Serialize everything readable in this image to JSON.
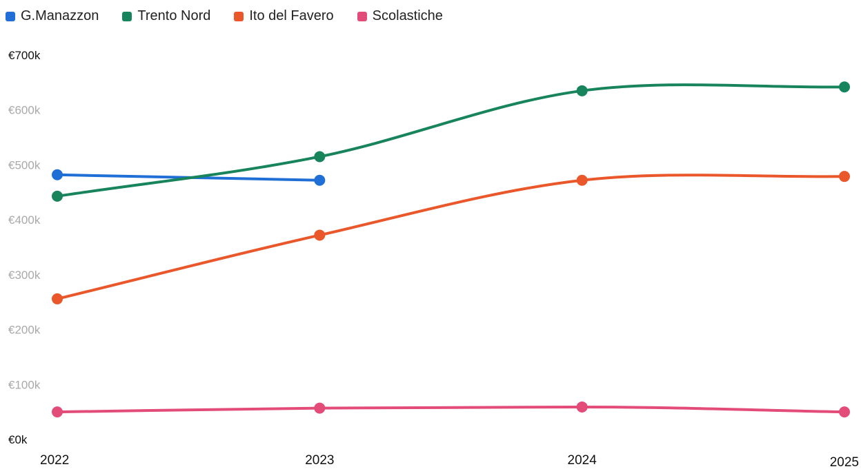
{
  "chart_data": {
    "type": "line",
    "categories": [
      "2022",
      "2023",
      "2024",
      "2025"
    ],
    "ylim": [
      0,
      700000
    ],
    "yticks": [
      0,
      100000,
      200000,
      300000,
      400000,
      500000,
      600000,
      700000
    ],
    "ytick_labels": [
      "€0k",
      "€100k",
      "€200k",
      "€300k",
      "€400k",
      "€500k",
      "€600k",
      "€700k"
    ],
    "grid": false,
    "legend_position": "top-left",
    "series": [
      {
        "name": "G.Manazzon",
        "color": "#1f6fd6",
        "values": [
          482000,
          472000,
          null,
          null
        ]
      },
      {
        "name": "Trento Nord",
        "color": "#17845c",
        "values": [
          443000,
          515000,
          635000,
          642000
        ]
      },
      {
        "name": "Ito del Favero",
        "color": "#e9572b",
        "values": [
          256000,
          372000,
          472000,
          479000
        ]
      },
      {
        "name": "Scolastiche",
        "color": "#e34c78",
        "values": [
          50000,
          57000,
          59000,
          50000
        ]
      }
    ]
  }
}
